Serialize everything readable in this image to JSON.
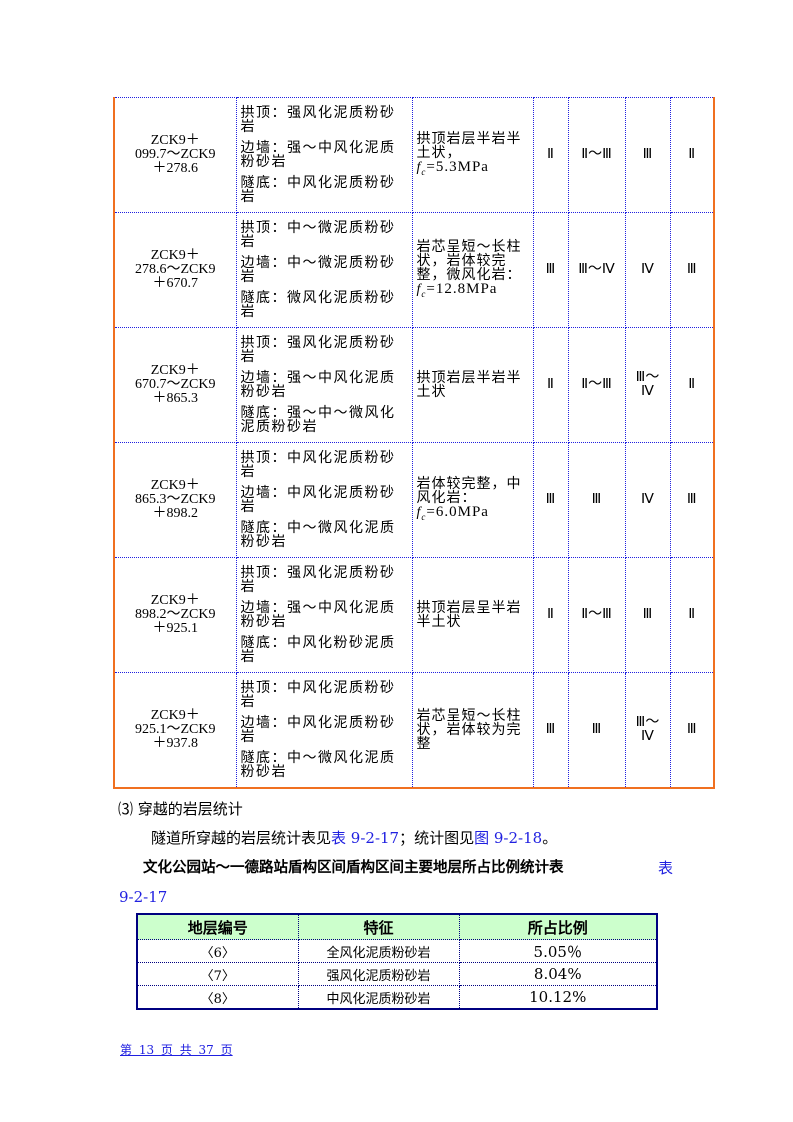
{
  "rows": [
    {
      "mileage": [
        "ZCK9＋",
        "099.7～ZCK9",
        "＋278.6"
      ],
      "desc": [
        "拱顶：强风化泥质粉砂岩",
        "边墙：强～中风化泥质粉砂岩",
        "隧底：中风化泥质粉砂岩"
      ],
      "rock": "拱顶岩层半岩半土状，",
      "fc": "=5.3MPa",
      "g1": "Ⅱ",
      "g2": "Ⅱ～Ⅲ",
      "g3": "Ⅲ",
      "g4": "Ⅱ"
    },
    {
      "mileage": [
        "ZCK9＋",
        "278.6～ZCK9",
        "＋670.7"
      ],
      "desc": [
        "拱顶：中～微泥质粉砂岩",
        "边墙：中～微泥质粉砂岩",
        "隧底：微风化泥质粉砂岩"
      ],
      "rock": "岩芯呈短～长柱状，岩体较完整，微风化岩：",
      "fc": "=12.8MPa",
      "g1": "Ⅲ",
      "g2": "Ⅲ～Ⅳ",
      "g3": "Ⅳ",
      "g4": "Ⅲ"
    },
    {
      "mileage": [
        "ZCK9＋",
        "670.7～ZCK9",
        "＋865.3"
      ],
      "desc": [
        "拱顶：强风化泥质粉砂岩",
        "边墙：强～中风化泥质粉砂岩",
        "隧底：强～中～微风化泥质粉砂岩"
      ],
      "rock": "拱顶岩层半岩半土状",
      "fc": null,
      "g1": "Ⅱ",
      "g2": "Ⅱ～Ⅲ",
      "g3": "Ⅲ～Ⅳ",
      "g4": "Ⅱ"
    },
    {
      "mileage": [
        "ZCK9＋",
        "865.3～ZCK9",
        "＋898.2"
      ],
      "desc": [
        "拱顶：中风化泥质粉砂岩",
        "边墙：中风化泥质粉砂岩",
        "隧底：中～微风化泥质粉砂岩"
      ],
      "rock": "岩体较完整，中风化岩：",
      "fc": "=6.0MPa",
      "g1": "Ⅲ",
      "g2": "Ⅲ",
      "g3": "Ⅳ",
      "g4": "Ⅲ"
    },
    {
      "mileage": [
        "ZCK9＋",
        "898.2～ZCK9",
        "＋925.1"
      ],
      "desc": [
        "拱顶：强风化泥质粉砂岩",
        "边墙：强～中风化泥质粉砂岩",
        "隧底：中风化粉砂泥质岩"
      ],
      "rock": "拱顶岩层呈半岩半土状",
      "fc": null,
      "g1": "Ⅱ",
      "g2": "Ⅱ～Ⅲ",
      "g3": "Ⅲ",
      "g4": "Ⅱ"
    },
    {
      "mileage": [
        "ZCK9＋",
        "925.1～ZCK9",
        "＋937.8"
      ],
      "desc": [
        "拱顶：中风化泥质粉砂岩",
        "边墙：中风化泥质粉砂岩",
        "隧底：中～微风化泥质粉砂岩"
      ],
      "rock": "岩芯呈短～长柱状，岩体较为完整",
      "fc": null,
      "g1": "Ⅲ",
      "g2": "Ⅲ",
      "g3": "Ⅲ～Ⅳ",
      "g4": "Ⅲ"
    }
  ],
  "fc_symbol": "fc",
  "section": {
    "heading": "⑶ 穿越的岩层统计",
    "para_pre": "隧道所穿越的岩层统计表见",
    "para_link1": "表 9-2-17",
    "para_mid": "；统计图见",
    "para_link2": "图 9-2-18",
    "para_post": "。"
  },
  "table_title": "文化公园站～一德路站盾构区间盾构区间主要地层所占比例统计表",
  "table_ref_a": "表",
  "table_ref_b": "9-2-17",
  "stat_table": {
    "headers": [
      "地层编号",
      "特征",
      "所占比例"
    ],
    "rows": [
      [
        "〈6〉",
        "全风化泥质粉砂岩",
        "5.05％"
      ],
      [
        "〈7〉",
        "强风化泥质粉砂岩",
        "8.04%"
      ],
      [
        "〈8〉",
        "中风化泥质粉砂岩",
        "10.12%"
      ]
    ]
  },
  "footer": "第 13 页 共 37 页"
}
